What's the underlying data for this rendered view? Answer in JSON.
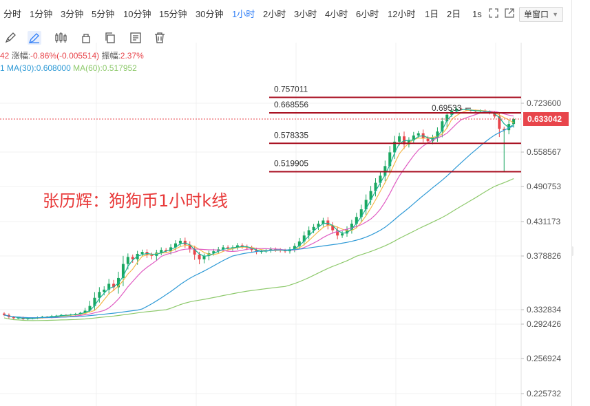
{
  "timeframes": [
    "分时",
    "1分钟",
    "3分钟",
    "5分钟",
    "10分钟",
    "15分钟",
    "30分钟",
    "1小时",
    "2小时",
    "3小时",
    "4小时",
    "6小时",
    "12小时",
    "1日",
    "2日"
  ],
  "active_timeframe": "1小时",
  "toolbar_right": {
    "seconds_label": "1s",
    "window_mode": "单窗口"
  },
  "legend": {
    "price_fragment": "42",
    "change_label": "涨幅:",
    "change_value": "-0.86%(-0.005514)",
    "amplitude_label": "振幅:",
    "amplitude_value": "2.37%",
    "ma_prefix": "1",
    "ma30": "MA(30):0.608000",
    "ma60": "MA(60):0.517952"
  },
  "watermark": "张历辉：狗狗币1小时k线",
  "chart_data": {
    "type": "candlestick",
    "ylim": [
      0.21,
      0.76
    ],
    "y_ticks": [
      0.7236,
      0.633042,
      0.558567,
      0.490753,
      0.431173,
      0.378826,
      0.332834,
      0.292426,
      0.256924,
      0.225732
    ],
    "y_tick_labels": [
      "0.723600",
      "0.633042",
      "0.558567",
      "0.490753",
      "0.431173",
      "0.378826",
      "0.332834",
      "0.292426",
      "0.256924",
      "0.225732"
    ],
    "current_price": 0.633042,
    "current_price_label": "0.633042",
    "high_marker": {
      "value": 0.69533,
      "label": "0.69533"
    },
    "levels": [
      {
        "value": 0.757011,
        "label": "0.757011"
      },
      {
        "value": 0.668556,
        "label": "0.668556"
      },
      {
        "value": 0.578335,
        "label": "0.578335"
      },
      {
        "value": 0.519905,
        "label": "0.519905"
      }
    ],
    "up_color": "#1aa760",
    "down_color": "#e8454b",
    "level_color": "#a80e1f",
    "ma_colors": {
      "ma5": "#f5b94a",
      "ma10": "#e05cc3",
      "ma30": "#2f9ad6",
      "ma60": "#8dc96b",
      "ma_short": "#19b394"
    },
    "series_close": [
      0.318,
      0.312,
      0.309,
      0.31,
      0.306,
      0.308,
      0.309,
      0.311,
      0.313,
      0.312,
      0.315,
      0.316,
      0.318,
      0.317,
      0.319,
      0.321,
      0.324,
      0.33,
      0.336,
      0.343,
      0.348,
      0.35,
      0.355,
      0.352,
      0.36,
      0.372,
      0.378,
      0.376,
      0.382,
      0.385,
      0.381,
      0.379,
      0.384,
      0.388,
      0.386,
      0.392,
      0.398,
      0.402,
      0.396,
      0.389,
      0.381,
      0.376,
      0.379,
      0.383,
      0.386,
      0.389,
      0.392,
      0.39,
      0.392,
      0.395,
      0.393,
      0.391,
      0.388,
      0.385,
      0.386,
      0.387,
      0.389,
      0.388,
      0.387,
      0.386,
      0.389,
      0.394,
      0.401,
      0.41,
      0.418,
      0.423,
      0.428,
      0.433,
      0.425,
      0.418,
      0.41,
      0.413,
      0.419,
      0.428,
      0.439,
      0.452,
      0.468,
      0.483,
      0.498,
      0.512,
      0.531,
      0.558,
      0.582,
      0.594,
      0.576,
      0.585,
      0.596,
      0.601,
      0.589,
      0.583,
      0.591,
      0.605,
      0.628,
      0.658,
      0.681,
      0.692,
      0.688,
      0.684,
      0.681,
      0.677,
      0.682,
      0.675,
      0.667,
      0.648,
      0.611,
      0.608,
      0.622,
      0.633
    ]
  }
}
